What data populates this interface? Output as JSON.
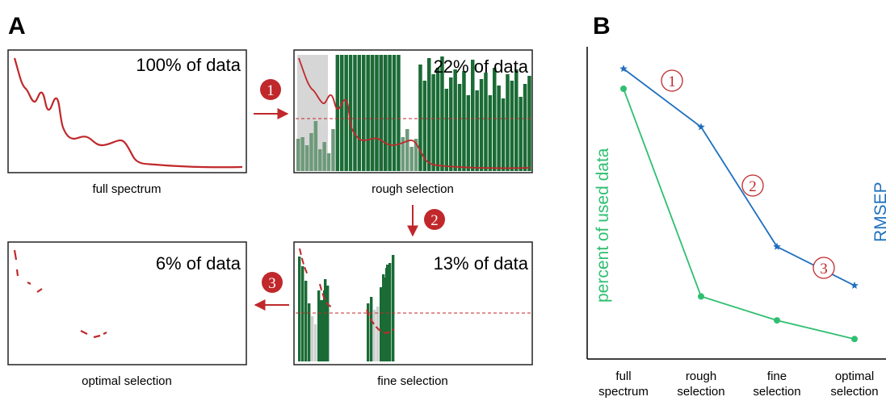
{
  "panel_a": {
    "letter": "A",
    "boxes": [
      {
        "id": "full",
        "pct": "100% of data",
        "caption": "full spectrum"
      },
      {
        "id": "rough",
        "pct": "22% of data",
        "caption": "rough selection"
      },
      {
        "id": "fine",
        "pct": "13% of data",
        "caption": "fine selection"
      },
      {
        "id": "optimal",
        "pct": "6% of data",
        "caption": "optimal selection"
      }
    ],
    "steps": [
      "1",
      "2",
      "3"
    ]
  },
  "panel_b": {
    "letter": "B",
    "ylabel_left": "percent of used data",
    "ylabel_right": "RMSEP",
    "x_ticks": [
      [
        "full",
        "spectrum"
      ],
      [
        "rough",
        "selection"
      ],
      [
        "fine",
        "selection"
      ],
      [
        "optimal",
        "selection"
      ]
    ],
    "step_markers": [
      "1",
      "2",
      "3"
    ]
  },
  "colors": {
    "red": "#c0282b",
    "green": "#1a6b35",
    "mint": "#2fbf71",
    "blue": "#1f6fbf",
    "gray": "#d6d6d6"
  },
  "chart_data": {
    "type": "line",
    "categories": [
      "full spectrum",
      "rough selection",
      "fine selection",
      "optimal selection"
    ],
    "series": [
      {
        "name": "percent of used data",
        "values": [
          100,
          22,
          13,
          6
        ]
      },
      {
        "name": "RMSEP",
        "values": [
          1.0,
          0.82,
          0.45,
          0.33
        ]
      }
    ]
  }
}
